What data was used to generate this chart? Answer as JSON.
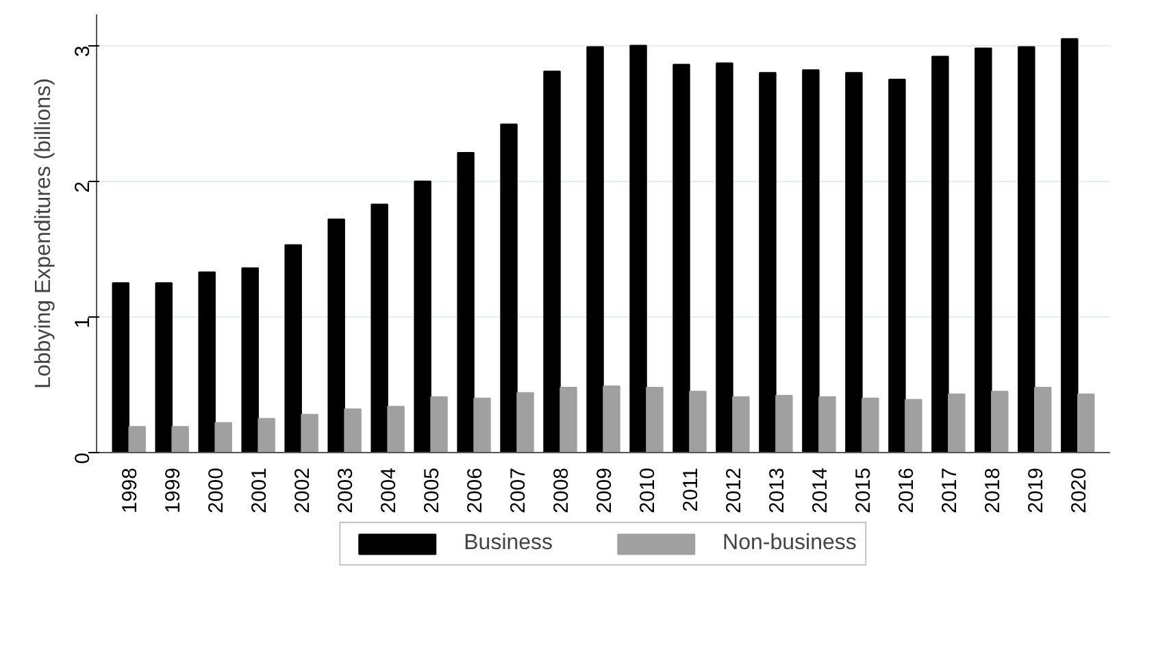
{
  "chart_data": {
    "type": "bar",
    "ylabel": "Lobbying Expenditures (billions)",
    "categories": [
      "1998",
      "1999",
      "2000",
      "2001",
      "2002",
      "2003",
      "2004",
      "2005",
      "2006",
      "2007",
      "2008",
      "2009",
      "2010",
      "2011",
      "2012",
      "2013",
      "2014",
      "2015",
      "2016",
      "2017",
      "2018",
      "2019",
      "2020"
    ],
    "series": [
      {
        "name": "Business",
        "color": "#000000",
        "values": [
          1.25,
          1.25,
          1.33,
          1.36,
          1.53,
          1.72,
          1.83,
          2.0,
          2.21,
          2.42,
          2.81,
          2.99,
          3.0,
          2.86,
          2.87,
          2.8,
          2.82,
          2.8,
          2.75,
          2.92,
          2.98,
          2.99,
          3.05
        ]
      },
      {
        "name": "Non-business",
        "color": "#a0a0a0",
        "values": [
          0.19,
          0.19,
          0.22,
          0.25,
          0.28,
          0.32,
          0.34,
          0.41,
          0.4,
          0.44,
          0.48,
          0.49,
          0.48,
          0.45,
          0.41,
          0.42,
          0.41,
          0.4,
          0.39,
          0.43,
          0.45,
          0.48,
          0.43
        ]
      }
    ],
    "ylim": [
      0,
      3.23
    ],
    "yticks": [
      0,
      1,
      2,
      3
    ],
    "grid": "y",
    "legend": "bottom"
  }
}
